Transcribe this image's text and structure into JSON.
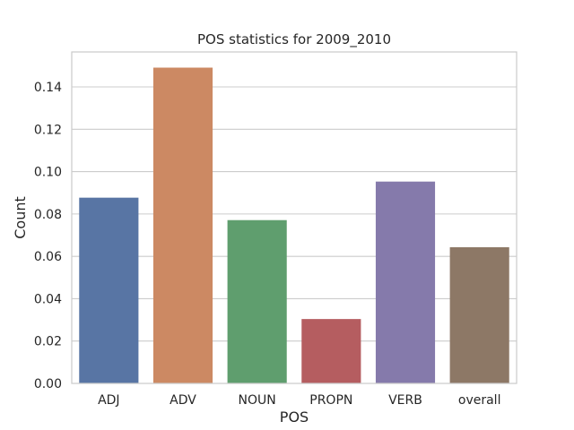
{
  "chart_data": {
    "type": "bar",
    "title": "POS statistics for 2009_2010",
    "xlabel": "POS",
    "ylabel": "Count",
    "categories": [
      "ADJ",
      "ADV",
      "NOUN",
      "PROPN",
      "VERB",
      "overall"
    ],
    "values": [
      0.0877,
      0.1491,
      0.0771,
      0.0304,
      0.0953,
      0.0643
    ],
    "ylim": [
      0,
      0.1565
    ],
    "yticks": [
      0.0,
      0.02,
      0.04,
      0.06,
      0.08,
      0.1,
      0.12,
      0.14
    ],
    "ytick_labels": [
      "0.00",
      "0.02",
      "0.04",
      "0.06",
      "0.08",
      "0.10",
      "0.12",
      "0.14"
    ],
    "grid": true,
    "colors": [
      "#5875a4",
      "#cc8963",
      "#5f9e6e",
      "#b55d60",
      "#857aab",
      "#8d7866"
    ]
  }
}
